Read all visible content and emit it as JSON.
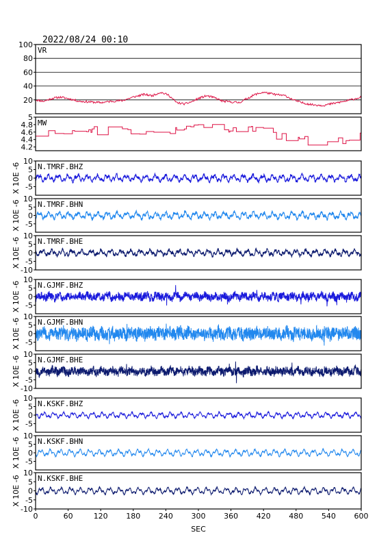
{
  "header": {
    "datetime": "2022/08/24 00:10"
  },
  "chart_data": {
    "type": "line",
    "x_range": [
      0,
      600
    ],
    "x_ticks": [
      0,
      60,
      120,
      180,
      240,
      300,
      360,
      420,
      480,
      540,
      600
    ],
    "xlabel": "SEC",
    "panels": [
      {
        "label": "VR",
        "ylim": [
          0,
          100
        ],
        "yticks": [
          20,
          40,
          60,
          80,
          100
        ],
        "grid": true,
        "color": "#dd1144",
        "ylabel": "",
        "profile": [
          [
            0,
            20
          ],
          [
            15,
            18
          ],
          [
            30,
            22
          ],
          [
            45,
            24
          ],
          [
            60,
            22
          ],
          [
            80,
            18
          ],
          [
            100,
            17
          ],
          [
            120,
            16
          ],
          [
            140,
            18
          ],
          [
            160,
            19
          ],
          [
            180,
            24
          ],
          [
            200,
            28
          ],
          [
            215,
            26
          ],
          [
            230,
            31
          ],
          [
            245,
            27
          ],
          [
            260,
            16
          ],
          [
            275,
            14
          ],
          [
            290,
            18
          ],
          [
            300,
            22
          ],
          [
            315,
            26
          ],
          [
            330,
            23
          ],
          [
            345,
            18
          ],
          [
            360,
            17
          ],
          [
            375,
            16
          ],
          [
            390,
            22
          ],
          [
            405,
            28
          ],
          [
            420,
            31
          ],
          [
            440,
            28
          ],
          [
            460,
            26
          ],
          [
            475,
            20
          ],
          [
            490,
            16
          ],
          [
            510,
            13
          ],
          [
            530,
            12
          ],
          [
            550,
            15
          ],
          [
            570,
            18
          ],
          [
            585,
            21
          ],
          [
            600,
            24
          ]
        ],
        "noise": 1.5,
        "seed": 11,
        "n": 500
      },
      {
        "label": "MW",
        "ylim": [
          4.1,
          5.0
        ],
        "yticks": [
          4.2,
          4.4,
          4.6,
          4.8,
          5.0
        ],
        "grid": false,
        "color": "#dd1144",
        "ylabel": "",
        "profile": [
          [
            0,
            4.55
          ],
          [
            60,
            4.6
          ],
          [
            120,
            4.65
          ],
          [
            180,
            4.55
          ],
          [
            240,
            4.5
          ],
          [
            270,
            4.8
          ],
          [
            300,
            4.75
          ],
          [
            360,
            4.7
          ],
          [
            420,
            4.6
          ],
          [
            460,
            4.45
          ],
          [
            500,
            4.35
          ],
          [
            540,
            4.3
          ],
          [
            580,
            4.4
          ],
          [
            600,
            4.5
          ]
        ],
        "noise": 0.12,
        "seed": 23,
        "n": 300,
        "steps": true
      },
      {
        "label": "N.TMRF.BHZ",
        "ylim": [
          -10,
          10
        ],
        "yticks": [
          -5,
          0,
          5,
          10
        ],
        "grid": false,
        "color": "#1a1adc",
        "ylabel": "X 10E -6",
        "noise": 0.9,
        "wave": 1.3,
        "seed": 31,
        "n": 1400
      },
      {
        "label": "N.TMRF.BHN",
        "ylim": [
          -10,
          10
        ],
        "yticks": [
          -5,
          0,
          5,
          10
        ],
        "grid": false,
        "color": "#2288ee",
        "ylabel": "X 10E -6",
        "noise": 0.9,
        "wave": 1.4,
        "seed": 37,
        "n": 1400
      },
      {
        "label": "N.TMRF.BHE",
        "ylim": [
          -10,
          10
        ],
        "yticks": [
          -10,
          -5,
          0,
          5,
          10
        ],
        "grid": false,
        "color": "#0c1a6e",
        "ylabel": "X 10E -6",
        "noise": 0.9,
        "wave": 1.2,
        "seed": 41,
        "n": 1400
      },
      {
        "label": "N.GJMF.BHZ",
        "ylim": [
          -10,
          10
        ],
        "yticks": [
          -5,
          0,
          5,
          10
        ],
        "grid": false,
        "color": "#1a1adc",
        "ylabel": "X 10E -6",
        "noise": 2.2,
        "wave": 0.8,
        "seed": 43,
        "n": 1600
      },
      {
        "label": "N.GJMF.BHN",
        "ylim": [
          -10,
          10
        ],
        "yticks": [
          -5,
          0,
          5,
          10
        ],
        "grid": false,
        "color": "#2288ee",
        "ylabel": "X 10E -6",
        "noise": 3.6,
        "wave": 0.9,
        "seed": 47,
        "n": 1600
      },
      {
        "label": "N.GJMF.BHE",
        "ylim": [
          -10,
          10
        ],
        "yticks": [
          -10,
          -5,
          0,
          5,
          10
        ],
        "grid": false,
        "color": "#0c1a6e",
        "ylabel": "X 10E -6",
        "noise": 2.4,
        "wave": 0.8,
        "seed": 53,
        "n": 1600
      },
      {
        "label": "N.KSKF.BHZ",
        "ylim": [
          -10,
          10
        ],
        "yticks": [
          -5,
          0,
          5,
          10
        ],
        "grid": false,
        "color": "#1a1adc",
        "ylabel": "X 10E -6",
        "noise": 0.4,
        "wave": 1.1,
        "seed": 59,
        "n": 1400
      },
      {
        "label": "N.KSKF.BHN",
        "ylim": [
          -10,
          10
        ],
        "yticks": [
          -5,
          0,
          5,
          10
        ],
        "grid": false,
        "color": "#2288ee",
        "ylabel": "X 10E -6",
        "noise": 0.4,
        "wave": 1.3,
        "seed": 61,
        "n": 1400
      },
      {
        "label": "N.KSKF.BHE",
        "ylim": [
          -10,
          10
        ],
        "yticks": [
          -10,
          -5,
          0,
          5,
          10
        ],
        "grid": false,
        "color": "#0c1a6e",
        "ylabel": "X 10E -6",
        "noise": 0.4,
        "wave": 1.2,
        "seed": 67,
        "n": 1400
      }
    ]
  }
}
